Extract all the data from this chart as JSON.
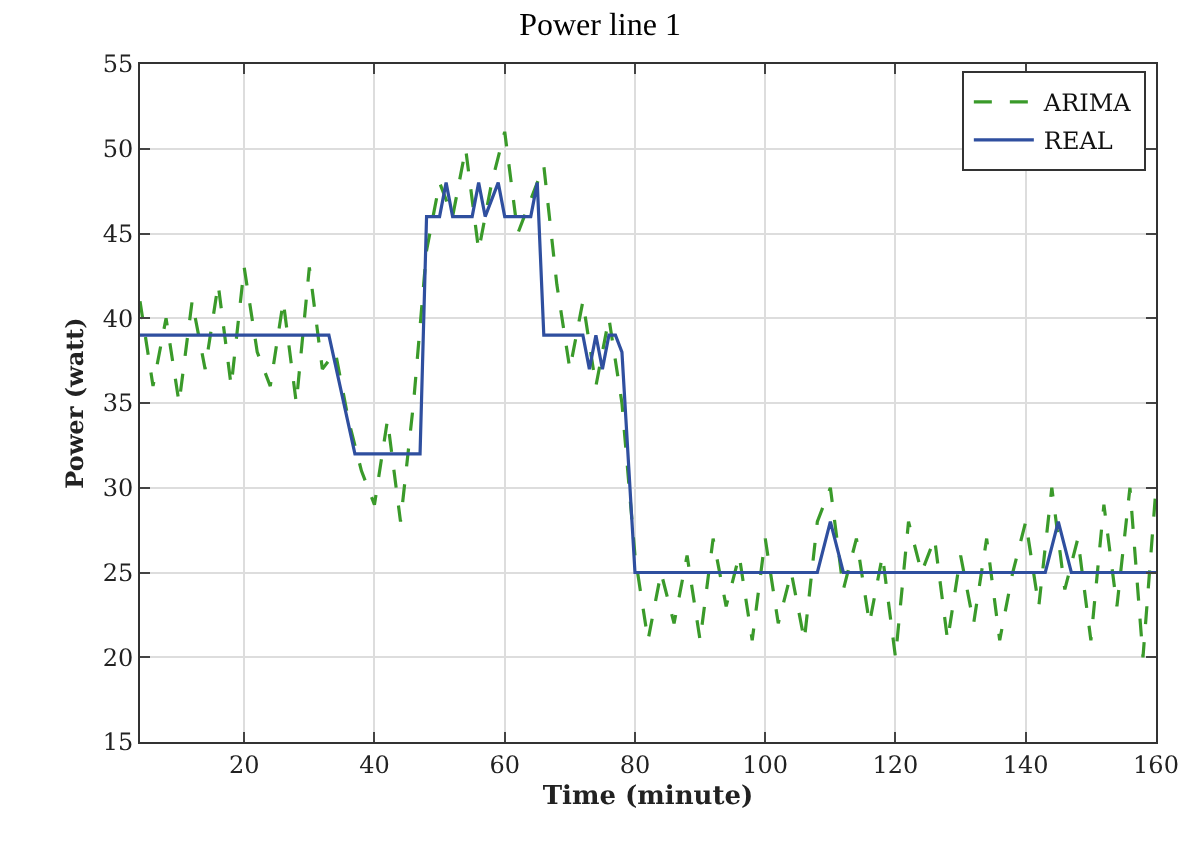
{
  "chart_data": {
    "type": "line",
    "title": "Power line 1",
    "xlabel": "Time (minute)",
    "ylabel": "Power (watt)",
    "xlim": [
      4,
      160
    ],
    "xticks": [
      20,
      40,
      60,
      80,
      100,
      120,
      140,
      160
    ],
    "ylim": [
      15,
      55
    ],
    "yticks": [
      15,
      20,
      25,
      30,
      35,
      40,
      45,
      50,
      55
    ],
    "grid": true,
    "legend": "top right",
    "series": [
      {
        "name": "ARIMA",
        "color": "#3a9a2a",
        "line_style": "dashed",
        "x": [
          4,
          6,
          8,
          10,
          12,
          14,
          16,
          18,
          20,
          22,
          24,
          26,
          28,
          30,
          32,
          34,
          36,
          38,
          40,
          42,
          44,
          46,
          48,
          50,
          52,
          54,
          56,
          58,
          60,
          62,
          64,
          66,
          68,
          70,
          72,
          74,
          76,
          78,
          80,
          82,
          84,
          86,
          88,
          90,
          92,
          94,
          96,
          98,
          100,
          102,
          104,
          106,
          108,
          110,
          112,
          114,
          116,
          118,
          120,
          122,
          124,
          126,
          128,
          130,
          132,
          134,
          136,
          138,
          140,
          142,
          144,
          146,
          148,
          150,
          152,
          154,
          156,
          158,
          160
        ],
        "values": [
          41,
          36,
          40,
          35,
          41,
          37,
          42,
          36,
          43,
          38,
          36,
          41,
          35,
          43,
          37,
          38,
          34,
          31,
          29,
          34,
          28,
          35,
          44,
          48,
          46,
          50,
          44,
          48,
          51,
          45,
          47,
          49,
          42,
          37,
          41,
          36,
          40,
          35,
          26,
          21,
          25,
          22,
          26,
          21,
          27,
          23,
          26,
          21,
          27,
          22,
          25,
          21,
          28,
          30,
          24,
          27,
          22,
          26,
          20,
          28,
          25,
          27,
          21,
          26,
          22,
          27,
          21,
          25,
          28,
          23,
          30,
          24,
          27,
          21,
          29,
          23,
          30,
          20,
          30
        ]
      },
      {
        "name": "REAL",
        "color": "#2f4f9f",
        "line_style": "solid",
        "x": [
          4,
          33,
          37,
          47,
          48,
          50,
          51,
          52,
          55,
          56,
          57,
          58,
          59,
          60,
          64,
          65,
          66,
          67,
          72,
          73,
          74,
          75,
          76,
          77,
          78,
          80,
          108,
          110,
          112,
          143,
          145,
          147,
          160
        ],
        "values": [
          39,
          39,
          32,
          32,
          46,
          46,
          48,
          46,
          46,
          48,
          46,
          47,
          48,
          46,
          46,
          48,
          39,
          39,
          39,
          37,
          39,
          37,
          39,
          39,
          38,
          25,
          25,
          28,
          25,
          25,
          28,
          25,
          25
        ]
      }
    ]
  }
}
